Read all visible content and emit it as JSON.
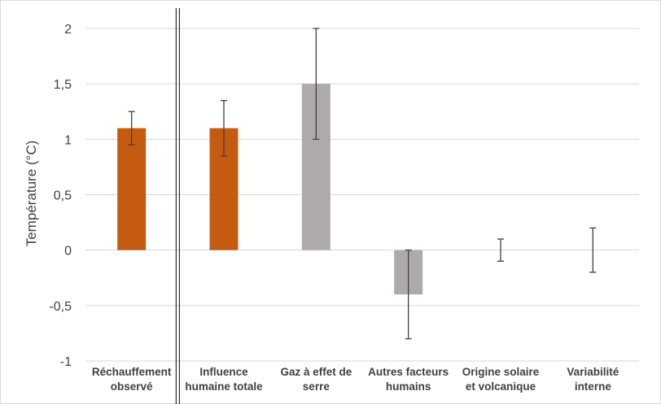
{
  "chart_data": {
    "type": "bar",
    "ylabel": "Température (°C)",
    "ylim": [
      -1,
      2
    ],
    "yticks": [
      2,
      1.5,
      1,
      0.5,
      0,
      -0.5,
      -1
    ],
    "ytick_labels": [
      "2",
      "1,5",
      "1",
      "0,5",
      "0",
      "-0,5",
      "-1"
    ],
    "grid": true,
    "categories": [
      [
        "Réchauffement",
        "observé"
      ],
      [
        "Influence",
        "humaine totale"
      ],
      [
        "Gaz à effet de",
        "serre"
      ],
      [
        "Autres facteurs",
        "humains"
      ],
      [
        "Origine solaire",
        "et volcanique"
      ],
      [
        "Variabilité",
        "interne"
      ]
    ],
    "values": [
      1.1,
      1.1,
      1.5,
      -0.4,
      0,
      0
    ],
    "error_low": [
      0.95,
      0.85,
      1.0,
      -0.8,
      -0.1,
      -0.2
    ],
    "error_high": [
      1.25,
      1.35,
      2.0,
      0.0,
      0.1,
      0.2
    ],
    "bar_colors": [
      "#c55a11",
      "#c55a11",
      "#aeaaaa",
      "#aeaaaa",
      "#aeaaaa",
      "#aeaaaa"
    ],
    "separator_after_category": 0
  }
}
